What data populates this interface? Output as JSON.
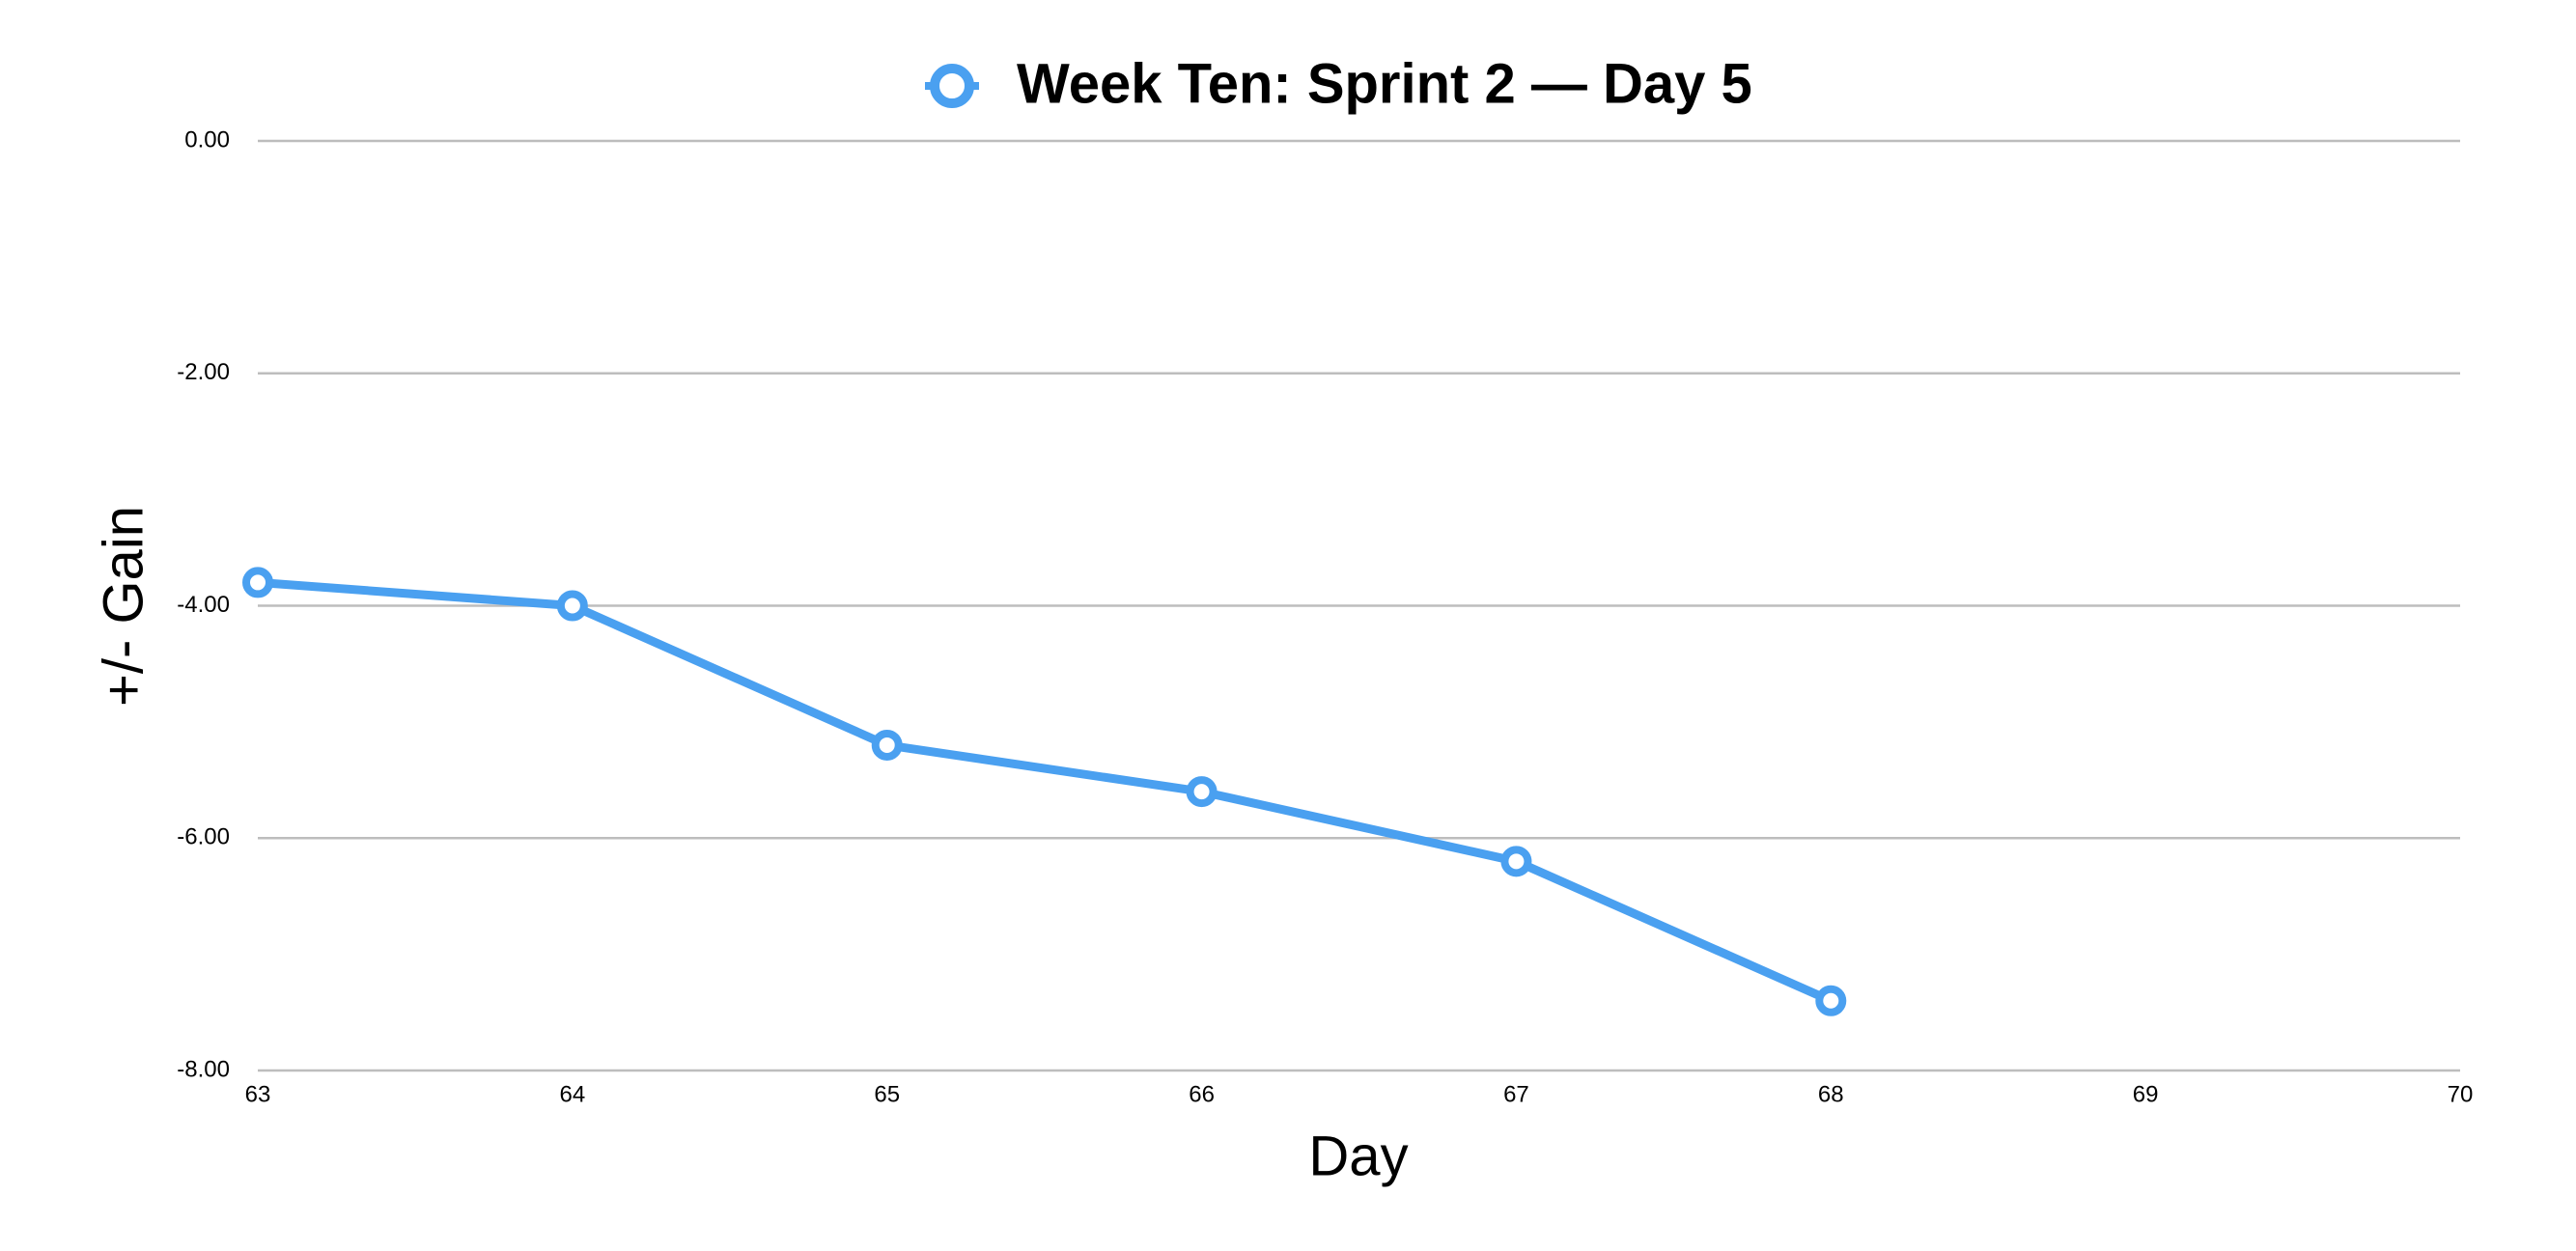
{
  "chart_data": {
    "type": "line",
    "x_label": "Day",
    "y_label": "+/- Gain",
    "x": [
      63,
      64,
      65,
      66,
      67,
      68
    ],
    "series": [
      {
        "name": "Week Ten: Sprint 2 — Day 5",
        "color": "#4aa0f0",
        "values": [
          -3.8,
          -4.0,
          -5.2,
          -5.6,
          -6.2,
          -7.4
        ]
      }
    ],
    "xlim": [
      63,
      70
    ],
    "xticks": [
      63,
      64,
      65,
      66,
      67,
      68,
      69,
      70
    ],
    "ylim": [
      -8,
      0
    ],
    "yticks": [
      {
        "value": 0,
        "label": "0.00"
      },
      {
        "value": -2,
        "label": "-2.00"
      },
      {
        "value": -4,
        "label": "-4.00"
      },
      {
        "value": -6,
        "label": "-6.00"
      },
      {
        "value": -8,
        "label": "-8.00"
      }
    ],
    "grid": true,
    "legend": "top"
  }
}
